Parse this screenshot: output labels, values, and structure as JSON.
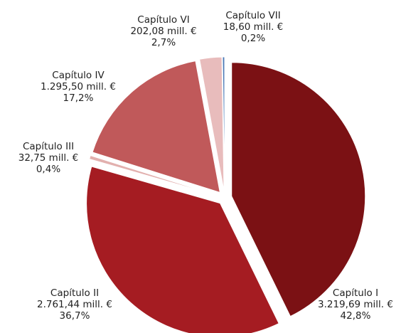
{
  "chart_data": {
    "type": "pie",
    "categories": [
      "Capítulo I",
      "Capítulo II",
      "Capítulo III",
      "Capítulo IV",
      "Capítulo VI",
      "Capítulo VII"
    ],
    "values": [
      3219.69,
      2761.44,
      32.75,
      1295.5,
      202.08,
      18.6
    ],
    "value_labels": [
      "3.219,69 mill. €",
      "2.761,44 mill. €",
      "32,75 mill. €",
      "1.295,50 mill. €",
      "202,08 mill. €",
      "18,60 mill. €"
    ],
    "percent_labels": [
      "42,8%",
      "36,7%",
      "0,4%",
      "17,2%",
      "2,7%",
      "0,2%"
    ],
    "colors": [
      "#7b1114",
      "#a51c22",
      "#e2b0ae",
      "#c0595a",
      "#e8bcbc",
      "#4a78b5"
    ]
  }
}
